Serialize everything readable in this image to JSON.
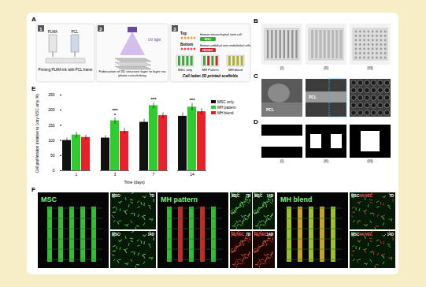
{
  "panels": {
    "A": {
      "label": "A",
      "steps": [
        {
          "number": "1",
          "caption": "Printing PLMA ink with PCL frame",
          "texts": [
            "PLMA",
            "PCL"
          ]
        },
        {
          "number": "2",
          "caption": "Fabrication of 3D structure layer to layer via photo-crosslinking",
          "texts": [
            "UV light"
          ]
        },
        {
          "number": "3",
          "caption": "Cell-laden 3D printed scaffolds",
          "top": {
            "label": "Top",
            "cell": "Human mesenchymal stem cell",
            "tag": "MSC"
          },
          "bottom": {
            "label": "Bottom",
            "cell": "Human umbilical vein endothelial cells",
            "tag": "HUVEC"
          },
          "scaffolds": [
            "MSC only",
            "MH Pattern",
            "MH blend"
          ]
        }
      ]
    },
    "B": {
      "label": "B",
      "images": [
        "(I)",
        "(II)",
        "(III)"
      ]
    },
    "C": {
      "label": "C",
      "texts": [
        "PCL",
        "PCL"
      ]
    },
    "D": {
      "label": "D",
      "images": [
        "(I)",
        "(II)",
        "(III)"
      ]
    },
    "E": {
      "label": "E"
    },
    "F": {
      "label": "F",
      "groups": [
        {
          "title": "MSC",
          "insets": [
            {
              "cells": [
                "MSC"
              ],
              "day": "7D"
            },
            {
              "cells": [
                "MSC"
              ],
              "day": "14D"
            }
          ]
        },
        {
          "title": "MH pattern",
          "insets": [
            {
              "cells": [
                "MSC"
              ],
              "day": "7D"
            },
            {
              "cells": [
                "MSC"
              ],
              "day": "14D"
            },
            {
              "cells": [
                "HUVEC"
              ],
              "day": "7D"
            },
            {
              "cells": [
                "HUVEC"
              ],
              "day": "14D"
            }
          ]
        },
        {
          "title": "MH blend",
          "insets": [
            {
              "cells": [
                "MSC",
                "HUVEC"
              ],
              "day": "7D"
            },
            {
              "cells": [
                "MSC",
                "HUVEC"
              ],
              "day": "14D"
            }
          ]
        }
      ]
    }
  },
  "chart_data": {
    "type": "bar",
    "x_label": "Time (days)",
    "y_label": "Cell proliferation (relative to 1day MSC only, %)",
    "categories": [
      1,
      3,
      7,
      14
    ],
    "series": [
      {
        "name": "MSC only",
        "color": "#111111",
        "values": [
          100,
          108,
          160,
          180
        ],
        "errors": [
          8,
          8,
          10,
          12
        ]
      },
      {
        "name": "MH pattern",
        "color": "#2ecc2e",
        "values": [
          118,
          165,
          215,
          210
        ],
        "errors": [
          10,
          10,
          10,
          12
        ]
      },
      {
        "name": "MH blend",
        "color": "#e8212a",
        "values": [
          110,
          130,
          182,
          195
        ],
        "errors": [
          8,
          10,
          10,
          10
        ]
      }
    ],
    "annotations": [
      {
        "category": 3,
        "text": "***",
        "y": 200
      },
      {
        "category": 3,
        "text": "*",
        "y": 184
      },
      {
        "category": 7,
        "text": "***",
        "y": 235
      },
      {
        "category": 14,
        "text": "***",
        "y": 232
      }
    ],
    "ylim": [
      0,
      250
    ],
    "yticks": [
      0,
      50,
      100,
      150,
      200,
      250
    ],
    "grid": false,
    "legend": "top-right"
  }
}
